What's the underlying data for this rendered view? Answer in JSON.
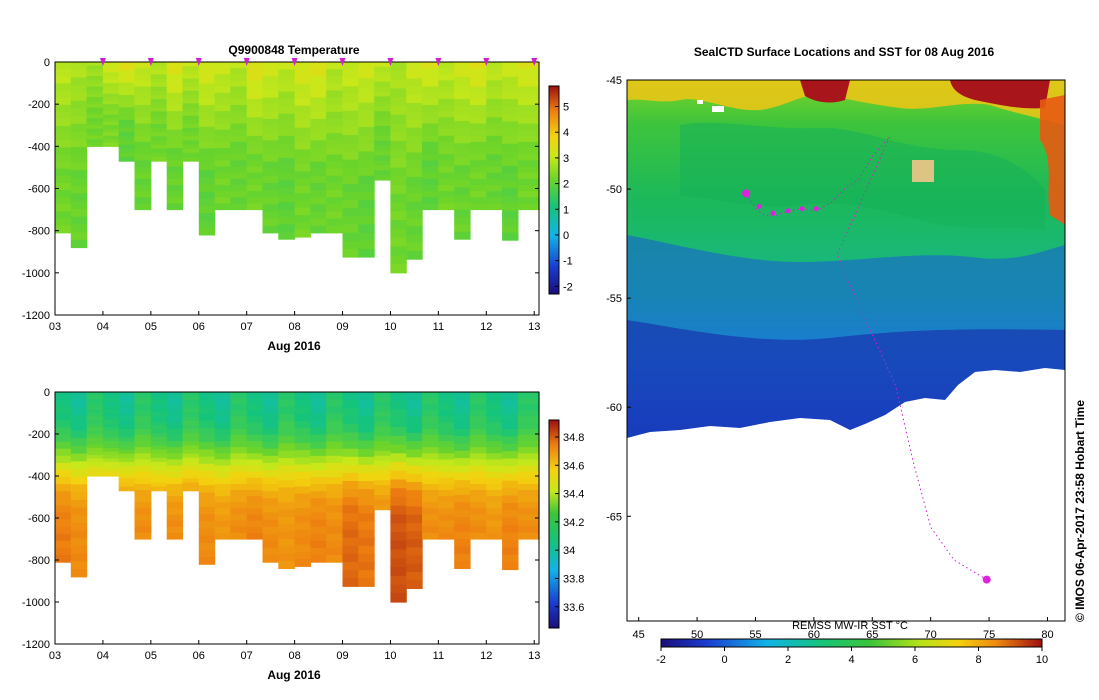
{
  "chart_data": [
    {
      "type": "heatmap",
      "title": "Q9900848  Temperature",
      "xlabel": "Aug 2016",
      "ylabel": "",
      "x_tick_labels": [
        "03",
        "04",
        "05",
        "06",
        "07",
        "08",
        "09",
        "10",
        "11",
        "12",
        "13"
      ],
      "y_tick_labels": [
        "0",
        "-200",
        "-400",
        "-600",
        "-800",
        "-1000",
        "-1200"
      ],
      "ylim": [
        -1200,
        0
      ],
      "colorbar_labels": [
        "5",
        "4",
        "3",
        "2",
        "1",
        "0",
        "-1",
        "-2"
      ],
      "colorbar_range": [
        -2.3,
        5.8
      ],
      "profile_start_day": [
        3.0,
        3.33,
        3.66,
        4.0,
        4.33,
        4.66,
        5.0,
        5.33,
        5.66,
        6.0,
        6.33,
        6.66,
        7.0,
        7.33,
        7.66,
        8.0,
        8.33,
        8.66,
        9.0,
        9.33,
        9.66,
        10.0,
        10.33,
        10.66,
        11.0,
        11.33,
        11.66,
        12.0,
        12.33,
        12.66
      ],
      "profile_max_depth_m": [
        -810,
        -880,
        -400,
        -400,
        -470,
        -700,
        -470,
        -700,
        -470,
        -820,
        -700,
        -700,
        -700,
        -810,
        -840,
        -830,
        -810,
        -810,
        -925,
        -925,
        -560,
        -1000,
        -935,
        -700,
        -700,
        -840,
        -700,
        -700,
        -845,
        -700
      ],
      "surface_temp_c": [
        3.0,
        2.8,
        2.7,
        3.2,
        3.5,
        3.1,
        2.9,
        3.4,
        3.0,
        3.3,
        3.1,
        2.9,
        3.5,
        3.2,
        3.0,
        3.3,
        3.4,
        2.9,
        3.1,
        3.2,
        3.0,
        2.8,
        3.1,
        3.3,
        3.0,
        3.2,
        3.4,
        3.0,
        3.1,
        3.3
      ],
      "deep_temp_c": [
        2.2,
        2.1,
        2.2,
        2.3,
        2.0,
        2.1,
        2.2,
        2.1,
        2.2,
        2.0,
        2.2,
        2.1,
        2.2,
        2.1,
        2.0,
        2.2,
        2.1,
        2.2,
        2.1,
        2.0,
        2.1,
        2.2,
        2.1,
        2.0,
        2.2,
        2.1,
        2.2,
        2.1,
        2.0,
        2.2
      ],
      "surface_markers_day": [
        4.0,
        5.0,
        6.0,
        7.0,
        8.0,
        9.0,
        10.0,
        11.0,
        12.0,
        13.0
      ]
    },
    {
      "type": "heatmap",
      "title": "",
      "xlabel": "Aug 2016",
      "ylabel": "",
      "x_tick_labels": [
        "03",
        "04",
        "05",
        "06",
        "07",
        "08",
        "09",
        "10",
        "11",
        "12",
        "13"
      ],
      "y_tick_labels": [
        "0",
        "-200",
        "-400",
        "-600",
        "-800",
        "-1000",
        "-1200"
      ],
      "ylim": [
        -1200,
        0
      ],
      "colorbar_labels": [
        "34.8",
        "34.6",
        "34.4",
        "34.2",
        "34",
        "33.8",
        "33.6"
      ],
      "colorbar_range": [
        33.45,
        34.92
      ],
      "profile_start_day": [
        3.0,
        3.33,
        3.66,
        4.0,
        4.33,
        4.66,
        5.0,
        5.33,
        5.66,
        6.0,
        6.33,
        6.66,
        7.0,
        7.33,
        7.66,
        8.0,
        8.33,
        8.66,
        9.0,
        9.33,
        9.66,
        10.0,
        10.33,
        10.66,
        11.0,
        11.33,
        11.66,
        12.0,
        12.33,
        12.66
      ],
      "profile_max_depth_m": [
        -810,
        -880,
        -400,
        -400,
        -470,
        -700,
        -470,
        -700,
        -470,
        -820,
        -700,
        -700,
        -700,
        -810,
        -840,
        -830,
        -810,
        -810,
        -925,
        -925,
        -560,
        -1000,
        -935,
        -700,
        -700,
        -840,
        -700,
        -700,
        -845,
        -700
      ],
      "surface_salinity": [
        34.05,
        34.0,
        34.1,
        34.05,
        34.0,
        34.1,
        34.05,
        34.0,
        34.1,
        34.05,
        34.0,
        34.1,
        34.05,
        34.0,
        34.1,
        34.05,
        34.0,
        34.1,
        34.05,
        34.0,
        34.1,
        34.05,
        34.0,
        34.1,
        34.05,
        34.0,
        34.1,
        34.05,
        34.0,
        34.1
      ],
      "deep_salinity": [
        34.75,
        34.72,
        34.7,
        34.72,
        34.74,
        34.72,
        34.7,
        34.72,
        34.74,
        34.72,
        34.7,
        34.72,
        34.74,
        34.72,
        34.7,
        34.72,
        34.74,
        34.72,
        34.78,
        34.76,
        34.72,
        34.82,
        34.8,
        34.72,
        34.72,
        34.74,
        34.72,
        34.7,
        34.74,
        34.72
      ]
    },
    {
      "type": "heatmap",
      "title": "SealCTD Surface Locations and SST for 08 Aug 2016",
      "xlabel": "",
      "ylabel": "",
      "x_tick_labels": [
        "45",
        "50",
        "55",
        "60",
        "65",
        "70",
        "75",
        "80"
      ],
      "y_tick_labels": [
        "-45",
        "-50",
        "-55",
        "-60",
        "-65"
      ],
      "xlim": [
        44.0,
        81.5
      ],
      "ylim": [
        -69.8,
        -45
      ],
      "colorbar_title": "REMSS MW-IR SST °C",
      "colorbar_labels": [
        "-2",
        "0",
        "2",
        "4",
        "6",
        "8",
        "10"
      ],
      "colorbar_range": [
        -2,
        10
      ],
      "seal_track_lon_lat": [
        [
          54.2,
          -50.2
        ],
        [
          55.0,
          -50.9
        ],
        [
          55.8,
          -51.2
        ],
        [
          56.8,
          -51.2
        ],
        [
          57.8,
          -51.0
        ],
        [
          59.0,
          -50.9
        ],
        [
          60.2,
          -51.0
        ],
        [
          61.5,
          -50.6
        ],
        [
          62.8,
          -49.9
        ],
        [
          63.8,
          -49.6
        ],
        [
          65.0,
          -48.5
        ],
        [
          66.5,
          -47.6
        ],
        [
          62.0,
          -53.0
        ],
        [
          64.0,
          -55.5
        ],
        [
          67.0,
          -59.0
        ],
        [
          68.5,
          -62.5
        ],
        [
          70.0,
          -65.5
        ],
        [
          72.0,
          -67.0
        ],
        [
          74.8,
          -67.9
        ]
      ],
      "seal_surface_points_lon_lat": [
        [
          54.2,
          -50.2
        ],
        [
          55.3,
          -50.8
        ],
        [
          56.5,
          -51.1
        ],
        [
          57.8,
          -51.0
        ],
        [
          59.0,
          -50.9
        ],
        [
          60.2,
          -50.9
        ],
        [
          74.8,
          -67.9
        ]
      ]
    }
  ],
  "watermark": "© IMOS 06-Apr-2017 23:58 Hobart Time"
}
